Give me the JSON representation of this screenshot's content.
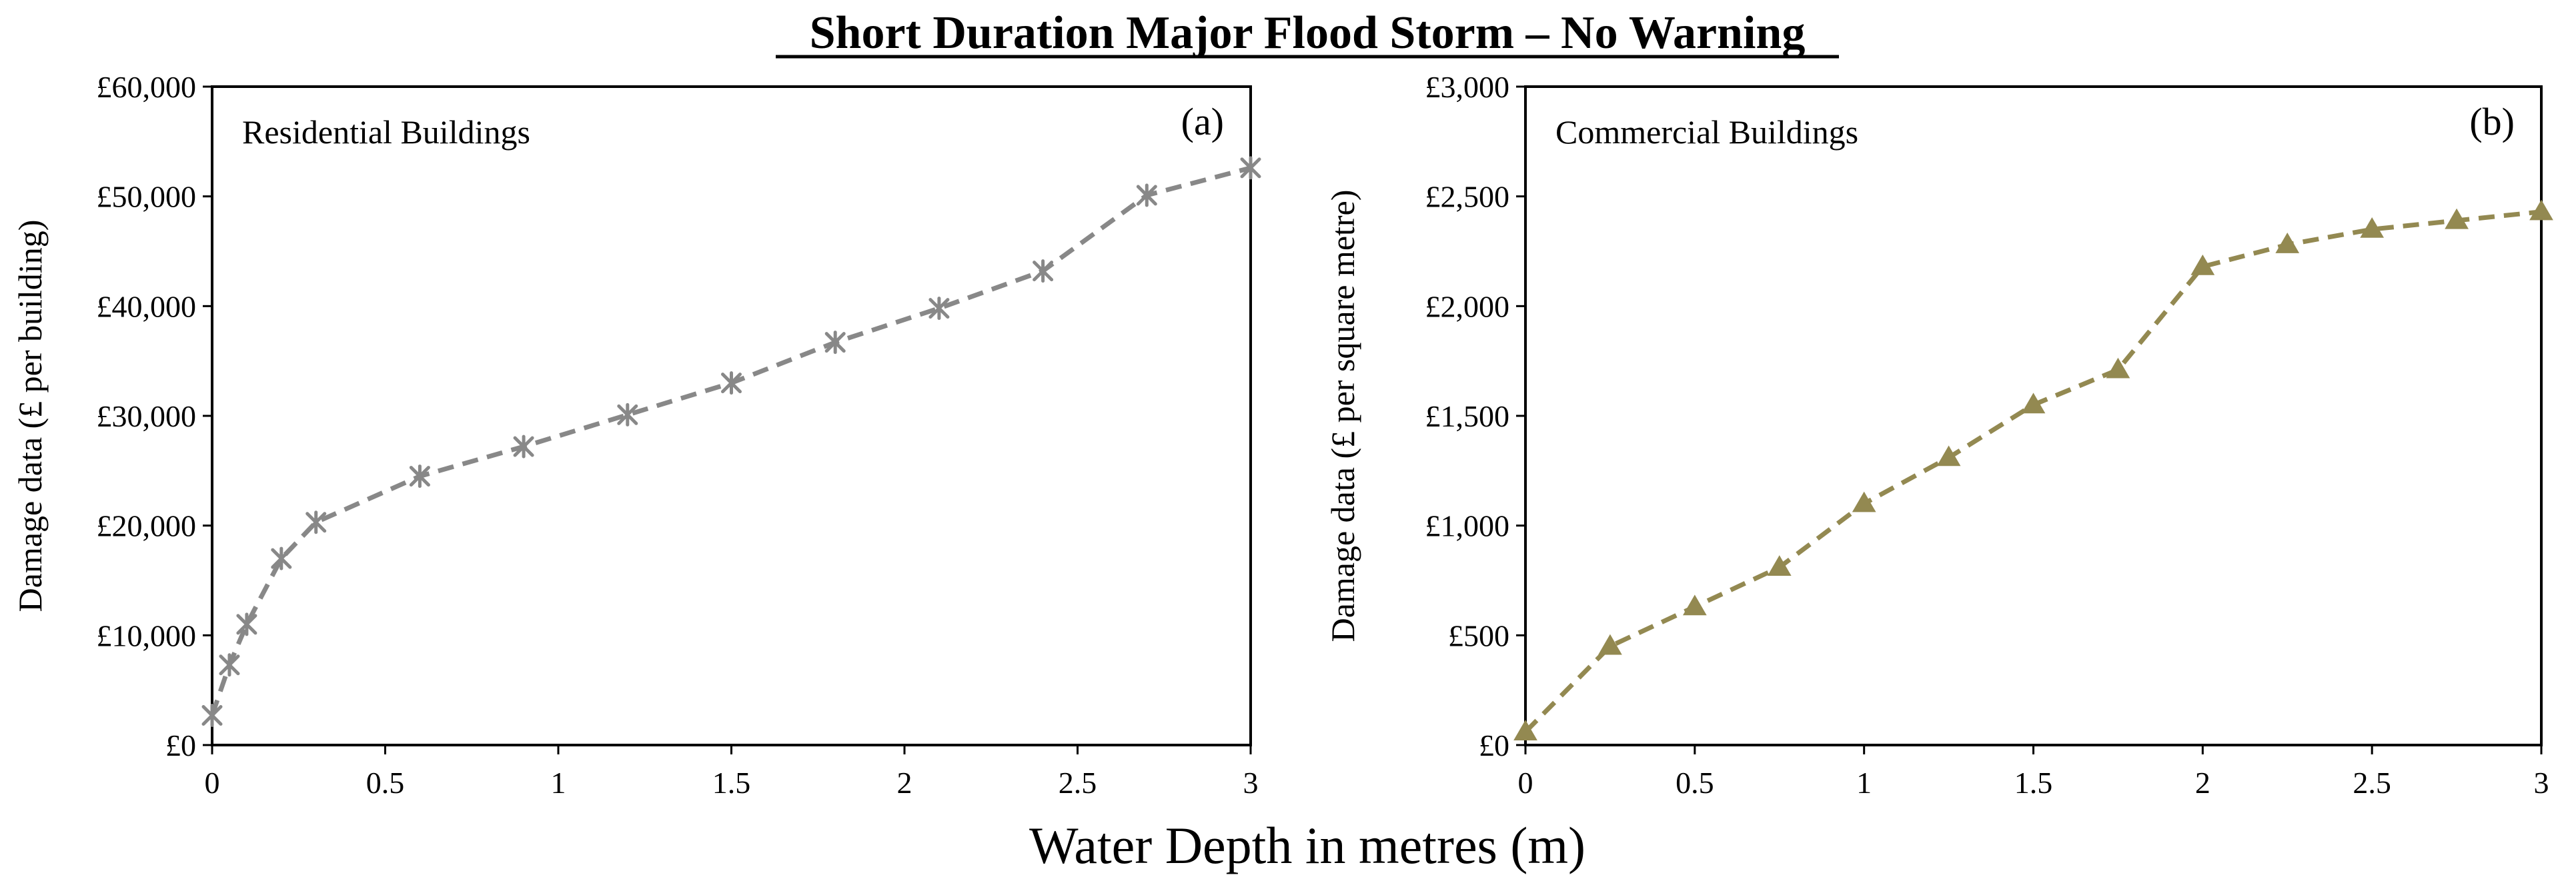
{
  "figure": {
    "title": "Short Duration Major Flood Storm – No Warning",
    "xlabel": "Water Depth in metres (m)"
  },
  "chart_data": [
    {
      "type": "line",
      "panel": "(a)",
      "inner_label": "Residential Buildings",
      "ylabel": "Damage data (£ per building)",
      "xlim": [
        0,
        3
      ],
      "ylim": [
        0,
        60000
      ],
      "x_ticks": [
        0,
        0.5,
        1,
        1.5,
        2,
        2.5,
        3
      ],
      "x_tick_labels": [
        "0",
        "0.5",
        "1",
        "1.5",
        "2",
        "2.5",
        "3"
      ],
      "y_ticks": [
        0,
        10000,
        20000,
        30000,
        40000,
        50000,
        60000
      ],
      "y_tick_labels": [
        "£0",
        "£10,000",
        "£20,000",
        "£30,000",
        "£40,000",
        "£50,000",
        "£60,000"
      ],
      "series": [
        {
          "name": "Residential",
          "color": "#888888",
          "marker": "asterisk",
          "line_style": "dashed",
          "x": [
            0,
            0.05,
            0.1,
            0.2,
            0.3,
            0.6,
            0.9,
            1.2,
            1.5,
            1.8,
            2.1,
            2.4,
            2.7,
            3.0
          ],
          "y": [
            2700,
            7300,
            11000,
            17000,
            20300,
            24500,
            27200,
            30100,
            33000,
            36700,
            39800,
            43200,
            50100,
            52600
          ]
        }
      ]
    },
    {
      "type": "line",
      "panel": "(b)",
      "inner_label": "Commercial Buildings",
      "ylabel": "Damage data (£ per square metre)",
      "xlim": [
        0,
        3
      ],
      "ylim": [
        0,
        3000
      ],
      "x_ticks": [
        0,
        0.5,
        1,
        1.5,
        2,
        2.5,
        3
      ],
      "x_tick_labels": [
        "0",
        "0.5",
        "1",
        "1.5",
        "2",
        "2.5",
        "3"
      ],
      "y_ticks": [
        0,
        500,
        1000,
        1500,
        2000,
        2500,
        3000
      ],
      "y_tick_labels": [
        "£0",
        "£500",
        "£1,000",
        "£1,500",
        "£2,000",
        "£2,500",
        "£3,000"
      ],
      "series": [
        {
          "name": "Commercial",
          "color": "#938951",
          "marker": "triangle",
          "line_style": "dashed",
          "x": [
            0,
            0.25,
            0.5,
            0.75,
            1.0,
            1.25,
            1.5,
            1.75,
            2.0,
            2.25,
            2.5,
            2.75,
            3.0
          ],
          "y": [
            60,
            450,
            630,
            810,
            1100,
            1310,
            1550,
            1710,
            2180,
            2280,
            2350,
            2390,
            2430
          ]
        }
      ]
    }
  ]
}
